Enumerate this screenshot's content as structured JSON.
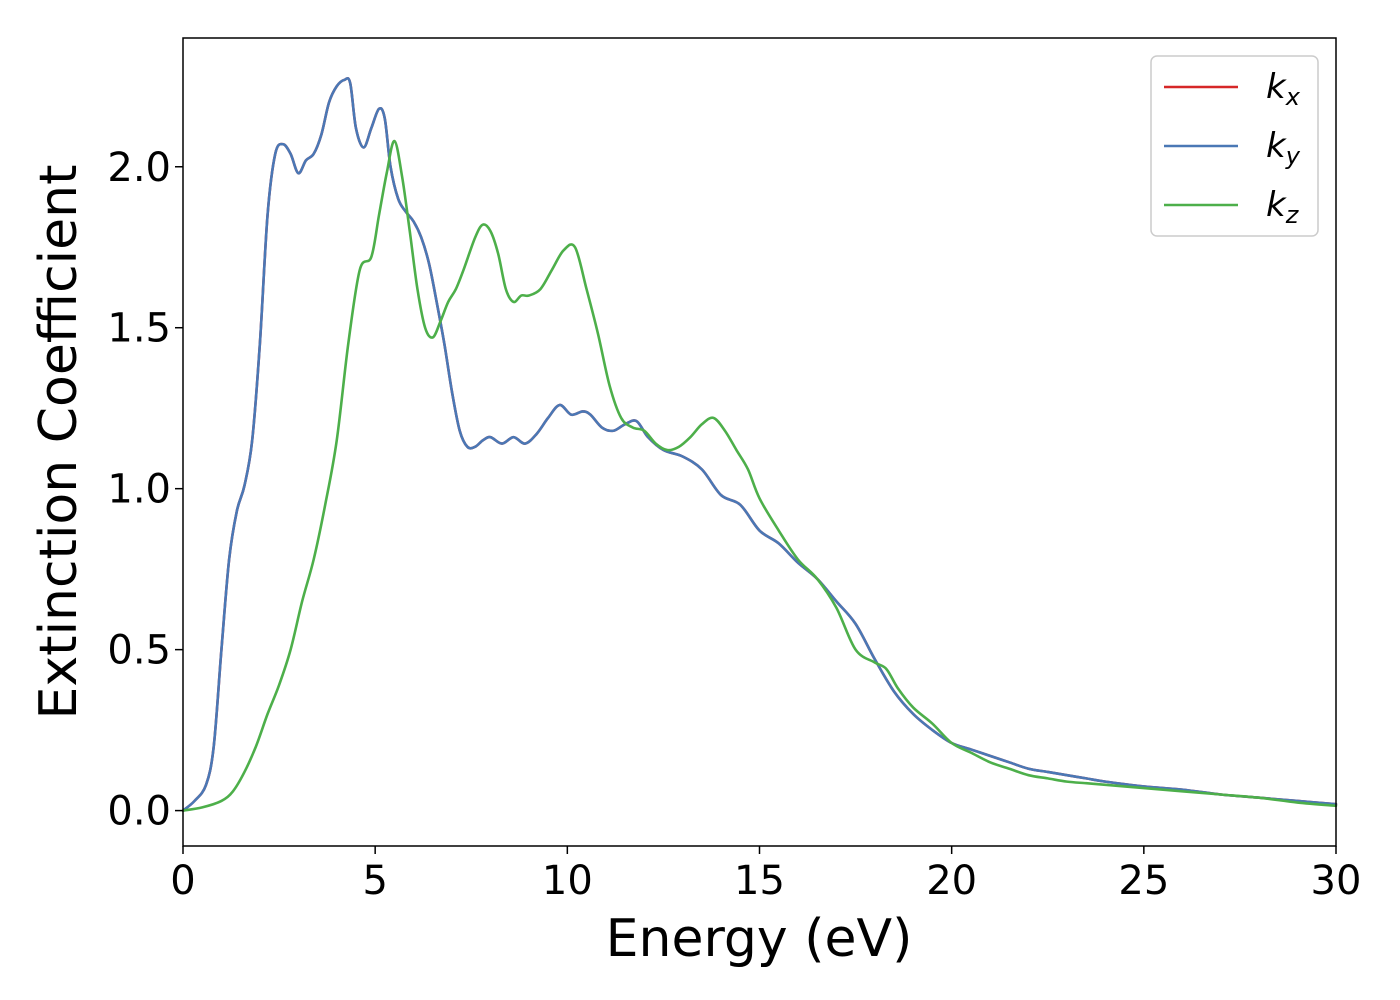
{
  "chart_data": {
    "type": "line",
    "xlabel": "Energy (eV)",
    "ylabel": "Extinction Coefficient",
    "xlim": [
      0,
      30
    ],
    "ylim": [
      -0.11,
      2.4
    ],
    "xticks": [
      0,
      5,
      10,
      15,
      20,
      25,
      30
    ],
    "yticks": [
      0.0,
      0.5,
      1.0,
      1.5,
      2.0
    ],
    "xtick_labels": [
      "0",
      "5",
      "10",
      "15",
      "20",
      "25",
      "30"
    ],
    "ytick_labels": [
      "0.0",
      "0.5",
      "1.0",
      "1.5",
      "2.0"
    ],
    "grid": false,
    "legend_position": "top-right",
    "series": [
      {
        "name": "k_x",
        "label_main": "k",
        "label_sub": "x",
        "color": "#d62728",
        "x": [
          0,
          0.3,
          0.6,
          0.8,
          1.0,
          1.2,
          1.4,
          1.6,
          1.8,
          2.0,
          2.2,
          2.4,
          2.6,
          2.8,
          3.0,
          3.2,
          3.4,
          3.6,
          3.8,
          4.0,
          4.2,
          4.35,
          4.5,
          4.7,
          4.9,
          5.1,
          5.25,
          5.4,
          5.6,
          5.8,
          6.0,
          6.2,
          6.4,
          6.6,
          6.8,
          7.0,
          7.2,
          7.4,
          7.6,
          7.8,
          8.0,
          8.3,
          8.6,
          8.9,
          9.2,
          9.5,
          9.8,
          10.1,
          10.4,
          10.6,
          10.9,
          11.2,
          11.5,
          11.8,
          12.1,
          12.5,
          13.0,
          13.5,
          14.0,
          14.5,
          15.0,
          15.5,
          16.0,
          16.5,
          17.0,
          17.5,
          18.0,
          18.5,
          19.0,
          19.5,
          20.0,
          20.5,
          21.0,
          21.5,
          22.0,
          22.5,
          23.0,
          23.5,
          24.0,
          25.0,
          26.0,
          27.0,
          28.0,
          29.0,
          30.0
        ],
        "y": [
          0.0,
          0.03,
          0.08,
          0.2,
          0.5,
          0.78,
          0.93,
          1.01,
          1.15,
          1.45,
          1.85,
          2.04,
          2.07,
          2.04,
          1.98,
          2.02,
          2.04,
          2.1,
          2.2,
          2.25,
          2.27,
          2.26,
          2.12,
          2.06,
          2.12,
          2.18,
          2.15,
          2.0,
          1.9,
          1.86,
          1.83,
          1.78,
          1.7,
          1.58,
          1.45,
          1.3,
          1.18,
          1.13,
          1.13,
          1.15,
          1.16,
          1.14,
          1.16,
          1.14,
          1.17,
          1.22,
          1.26,
          1.23,
          1.24,
          1.23,
          1.19,
          1.18,
          1.2,
          1.21,
          1.16,
          1.12,
          1.1,
          1.06,
          0.98,
          0.95,
          0.87,
          0.83,
          0.77,
          0.72,
          0.65,
          0.58,
          0.47,
          0.37,
          0.3,
          0.25,
          0.21,
          0.19,
          0.17,
          0.15,
          0.13,
          0.12,
          0.11,
          0.1,
          0.09,
          0.075,
          0.065,
          0.05,
          0.04,
          0.03,
          0.02
        ]
      },
      {
        "name": "k_y",
        "label_main": "k",
        "label_sub": "y",
        "color": "#4a78b5",
        "x": [
          0,
          0.3,
          0.6,
          0.8,
          1.0,
          1.2,
          1.4,
          1.6,
          1.8,
          2.0,
          2.2,
          2.4,
          2.6,
          2.8,
          3.0,
          3.2,
          3.4,
          3.6,
          3.8,
          4.0,
          4.2,
          4.35,
          4.5,
          4.7,
          4.9,
          5.1,
          5.25,
          5.4,
          5.6,
          5.8,
          6.0,
          6.2,
          6.4,
          6.6,
          6.8,
          7.0,
          7.2,
          7.4,
          7.6,
          7.8,
          8.0,
          8.3,
          8.6,
          8.9,
          9.2,
          9.5,
          9.8,
          10.1,
          10.4,
          10.6,
          10.9,
          11.2,
          11.5,
          11.8,
          12.1,
          12.5,
          13.0,
          13.5,
          14.0,
          14.5,
          15.0,
          15.5,
          16.0,
          16.5,
          17.0,
          17.5,
          18.0,
          18.5,
          19.0,
          19.5,
          20.0,
          20.5,
          21.0,
          21.5,
          22.0,
          22.5,
          23.0,
          23.5,
          24.0,
          25.0,
          26.0,
          27.0,
          28.0,
          29.0,
          30.0
        ],
        "y": [
          0.0,
          0.03,
          0.08,
          0.2,
          0.5,
          0.78,
          0.93,
          1.01,
          1.15,
          1.45,
          1.85,
          2.04,
          2.07,
          2.04,
          1.98,
          2.02,
          2.04,
          2.1,
          2.2,
          2.25,
          2.27,
          2.26,
          2.12,
          2.06,
          2.12,
          2.18,
          2.15,
          2.0,
          1.9,
          1.86,
          1.83,
          1.78,
          1.7,
          1.58,
          1.45,
          1.3,
          1.18,
          1.13,
          1.13,
          1.15,
          1.16,
          1.14,
          1.16,
          1.14,
          1.17,
          1.22,
          1.26,
          1.23,
          1.24,
          1.23,
          1.19,
          1.18,
          1.2,
          1.21,
          1.16,
          1.12,
          1.1,
          1.06,
          0.98,
          0.95,
          0.87,
          0.83,
          0.77,
          0.72,
          0.65,
          0.58,
          0.47,
          0.37,
          0.3,
          0.25,
          0.21,
          0.19,
          0.17,
          0.15,
          0.13,
          0.12,
          0.11,
          0.1,
          0.09,
          0.075,
          0.065,
          0.05,
          0.04,
          0.03,
          0.02
        ]
      },
      {
        "name": "k_z",
        "label_main": "k",
        "label_sub": "z",
        "color": "#4daf4a",
        "x": [
          0,
          0.5,
          1.0,
          1.3,
          1.6,
          1.9,
          2.2,
          2.5,
          2.8,
          3.1,
          3.4,
          3.7,
          4.0,
          4.3,
          4.6,
          4.9,
          5.1,
          5.3,
          5.5,
          5.7,
          5.9,
          6.1,
          6.3,
          6.5,
          6.7,
          6.9,
          7.1,
          7.3,
          7.6,
          7.8,
          8.0,
          8.2,
          8.4,
          8.6,
          8.8,
          9.0,
          9.3,
          9.6,
          9.9,
          10.2,
          10.5,
          10.8,
          11.1,
          11.4,
          11.7,
          12.0,
          12.3,
          12.6,
          12.9,
          13.2,
          13.5,
          13.8,
          14.1,
          14.4,
          14.7,
          15.0,
          15.5,
          16.0,
          16.5,
          17.0,
          17.5,
          18.0,
          18.3,
          18.6,
          19.0,
          19.5,
          20.0,
          20.5,
          21.0,
          21.5,
          22.0,
          22.5,
          23.0,
          23.5,
          24.0,
          25.0,
          26.0,
          27.0,
          28.0,
          29.0,
          30.0
        ],
        "y": [
          0.0,
          0.01,
          0.03,
          0.06,
          0.12,
          0.2,
          0.3,
          0.39,
          0.5,
          0.65,
          0.78,
          0.95,
          1.15,
          1.45,
          1.68,
          1.72,
          1.85,
          1.98,
          2.08,
          1.97,
          1.8,
          1.62,
          1.5,
          1.47,
          1.52,
          1.58,
          1.62,
          1.68,
          1.78,
          1.82,
          1.8,
          1.73,
          1.62,
          1.58,
          1.6,
          1.6,
          1.62,
          1.68,
          1.74,
          1.75,
          1.62,
          1.48,
          1.32,
          1.22,
          1.19,
          1.18,
          1.14,
          1.12,
          1.13,
          1.16,
          1.2,
          1.22,
          1.18,
          1.12,
          1.06,
          0.97,
          0.87,
          0.78,
          0.72,
          0.63,
          0.5,
          0.46,
          0.44,
          0.38,
          0.32,
          0.27,
          0.21,
          0.18,
          0.15,
          0.13,
          0.11,
          0.1,
          0.09,
          0.085,
          0.08,
          0.07,
          0.06,
          0.05,
          0.04,
          0.025,
          0.015
        ]
      }
    ]
  }
}
